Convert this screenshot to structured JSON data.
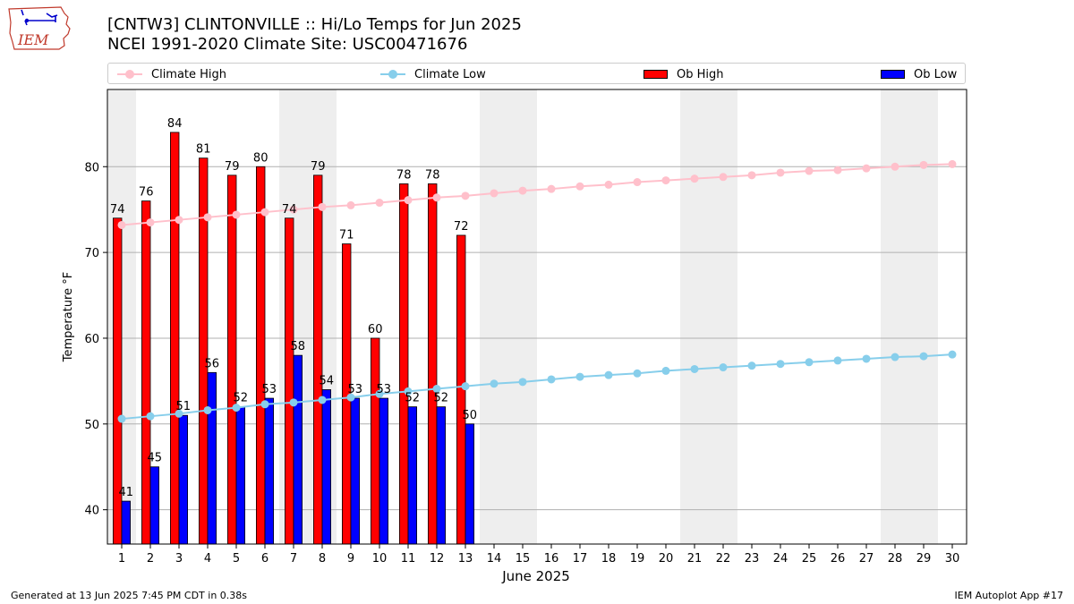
{
  "header": {
    "logo_text": "IEM",
    "title_line1": "[CNTW3] CLINTONVILLE :: Hi/Lo Temps for Jun 2025",
    "title_line2": "NCEI 1991-2020 Climate Site: USC00471676"
  },
  "legend": {
    "climate_high": "Climate High",
    "climate_low": "Climate Low",
    "ob_high": "Ob High",
    "ob_low": "Ob Low"
  },
  "footer": {
    "generated": "Generated at 13 Jun 2025 7:45 PM CDT in 0.38s",
    "app": "IEM Autoplot App #17"
  },
  "chart_data": {
    "type": "bar",
    "xlabel": "June 2025",
    "ylabel": "Temperature °F",
    "ylim": [
      36,
      89
    ],
    "xlim": [
      0.5,
      30.5
    ],
    "yticks": [
      40,
      50,
      60,
      70,
      80
    ],
    "grid": "horizontal",
    "legend_position": "top",
    "days": [
      1,
      2,
      3,
      4,
      5,
      6,
      7,
      8,
      9,
      10,
      11,
      12,
      13,
      14,
      15,
      16,
      17,
      18,
      19,
      20,
      21,
      22,
      23,
      24,
      25,
      26,
      27,
      28,
      29,
      30
    ],
    "weekend_days": [
      1,
      7,
      8,
      14,
      15,
      21,
      22,
      28,
      29
    ],
    "colors": {
      "ob_high": "#ff0000",
      "ob_low": "#0000ff",
      "climate_high": "#ffc0cb",
      "climate_low": "#87ceeb",
      "weekend": "#eeeeee",
      "grid": "#b0b0b0"
    },
    "series": [
      {
        "name": "Ob High",
        "type": "bar",
        "x": [
          1,
          2,
          3,
          4,
          5,
          6,
          7,
          8,
          9,
          10,
          11,
          12,
          13
        ],
        "values": [
          74,
          76,
          84,
          81,
          79,
          80,
          74,
          79,
          71,
          60,
          78,
          78,
          72
        ]
      },
      {
        "name": "Ob Low",
        "type": "bar",
        "x": [
          1,
          2,
          3,
          4,
          5,
          6,
          7,
          8,
          9,
          10,
          11,
          12,
          13
        ],
        "values": [
          41,
          45,
          51,
          56,
          52,
          53,
          58,
          54,
          53,
          53,
          52,
          52,
          50
        ]
      },
      {
        "name": "Climate High",
        "type": "line",
        "x": [
          1,
          2,
          3,
          4,
          5,
          6,
          7,
          8,
          9,
          10,
          11,
          12,
          13,
          14,
          15,
          16,
          17,
          18,
          19,
          20,
          21,
          22,
          23,
          24,
          25,
          26,
          27,
          28,
          29,
          30
        ],
        "values": [
          73.2,
          73.5,
          73.8,
          74.1,
          74.4,
          74.7,
          75.0,
          75.3,
          75.5,
          75.8,
          76.1,
          76.4,
          76.6,
          76.9,
          77.2,
          77.4,
          77.7,
          77.9,
          78.2,
          78.4,
          78.6,
          78.8,
          79.0,
          79.3,
          79.5,
          79.6,
          79.8,
          80.0,
          80.2,
          80.3
        ]
      },
      {
        "name": "Climate Low",
        "type": "line",
        "x": [
          1,
          2,
          3,
          4,
          5,
          6,
          7,
          8,
          9,
          10,
          11,
          12,
          13,
          14,
          15,
          16,
          17,
          18,
          19,
          20,
          21,
          22,
          23,
          24,
          25,
          26,
          27,
          28,
          29,
          30
        ],
        "values": [
          50.6,
          50.9,
          51.2,
          51.6,
          51.9,
          52.3,
          52.5,
          52.8,
          53.1,
          53.5,
          53.8,
          54.1,
          54.4,
          54.7,
          54.9,
          55.2,
          55.5,
          55.7,
          55.9,
          56.2,
          56.4,
          56.6,
          56.8,
          57.0,
          57.2,
          57.4,
          57.6,
          57.8,
          57.9,
          58.1
        ]
      }
    ]
  }
}
